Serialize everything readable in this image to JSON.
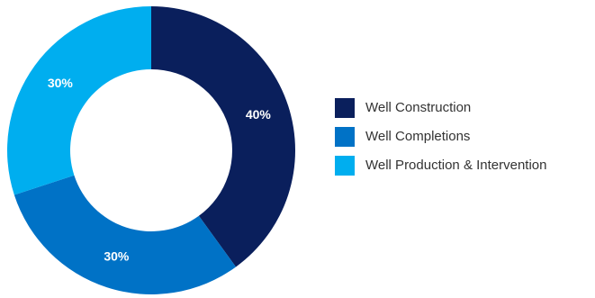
{
  "chart_data": {
    "type": "pie",
    "variant": "donut",
    "title": "",
    "categories": [
      "Well Construction",
      "Well Completions",
      "Well Production & Intervention"
    ],
    "values": [
      40,
      30,
      30
    ],
    "value_labels": [
      "40%",
      "30%",
      "30%"
    ],
    "colors": [
      "#0a1f5c",
      "#0072c6",
      "#00aeef"
    ],
    "start": "12 o'clock",
    "direction": "clockwise",
    "legend": {
      "placement": "right",
      "entries": [
        "Well Construction",
        "Well Completions",
        "Well Production & Intervention"
      ]
    }
  }
}
